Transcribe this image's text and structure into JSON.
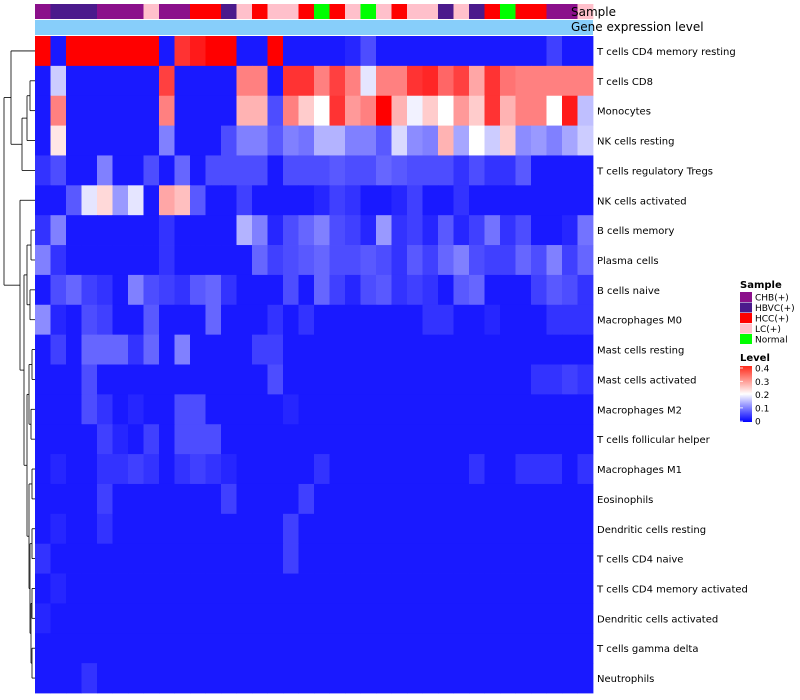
{
  "chart_data": {
    "type": "heatmap",
    "title": "",
    "annotation_tracks": [
      "Sample",
      "Gene expression level"
    ],
    "rows": [
      "T cells CD4 memory resting",
      "T cells CD8",
      "Monocytes",
      "NK cells resting",
      "T cells regulatory  Tregs",
      "NK cells activated",
      "B cells memory",
      "Plasma cells",
      "B cells naive",
      "Macrophages M0",
      "Mast cells resting",
      "Mast cells activated",
      "Macrophages M2",
      "T cells follicular helper",
      "Macrophages M1",
      "Eosinophils",
      "Dendritic cells resting",
      "T cells CD4 naive",
      "T cells CD4 memory activated",
      "Dendritic cells activated",
      "T cells gamma delta",
      "Neutrophils"
    ],
    "samples": [
      "CHB(+)",
      "HBVC(+)",
      "HBVC(+)",
      "HBVC(+)",
      "CHB(+)",
      "CHB(+)",
      "CHB(+)",
      "LC(+)",
      "CHB(+)",
      "CHB(+)",
      "HCC(+)",
      "HCC(+)",
      "HBVC(+)",
      "LC(+)",
      "HCC(+)",
      "LC(+)",
      "LC(+)",
      "HCC(+)",
      "Normal",
      "HCC(+)",
      "LC(+)",
      "Normal",
      "LC(+)",
      "HCC(+)",
      "LC(+)",
      "LC(+)",
      "HBVC(+)",
      "LC(+)",
      "HBVC(+)",
      "HCC(+)",
      "Normal",
      "HCC(+)",
      "HCC(+)",
      "CHB(+)",
      "CHB(+)",
      "LC(+)"
    ],
    "values": [
      [
        0.4,
        0.02,
        0.4,
        0.4,
        0.4,
        0.4,
        0.4,
        0.4,
        0.02,
        0.36,
        0.38,
        0.4,
        0.4,
        0.02,
        0.02,
        0.4,
        0.02,
        0.02,
        0.02,
        0.02,
        0.03,
        0.06,
        0.02,
        0.02,
        0.02,
        0.02,
        0.02,
        0.02,
        0.02,
        0.02,
        0.02,
        0.02,
        0.02,
        0.05,
        0.02,
        0.02
      ],
      [
        0.02,
        0.16,
        0.02,
        0.02,
        0.02,
        0.02,
        0.02,
        0.02,
        0.35,
        0.02,
        0.02,
        0.02,
        0.02,
        0.3,
        0.3,
        0.02,
        0.36,
        0.36,
        0.3,
        0.35,
        0.3,
        0.18,
        0.3,
        0.3,
        0.36,
        0.37,
        0.32,
        0.35,
        0.27,
        0.36,
        0.31,
        0.3,
        0.3,
        0.3,
        0.3,
        0.3
      ],
      [
        0.02,
        0.3,
        0.02,
        0.02,
        0.02,
        0.02,
        0.02,
        0.02,
        0.3,
        0.02,
        0.02,
        0.02,
        0.02,
        0.26,
        0.26,
        0.06,
        0.3,
        0.24,
        0.2,
        0.36,
        0.28,
        0.3,
        0.4,
        0.26,
        0.19,
        0.24,
        0.2,
        0.28,
        0.24,
        0.36,
        0.26,
        0.3,
        0.3,
        0.2,
        0.38,
        0.15
      ],
      [
        0.02,
        0.22,
        0.02,
        0.02,
        0.02,
        0.02,
        0.02,
        0.02,
        0.1,
        0.02,
        0.02,
        0.02,
        0.06,
        0.1,
        0.1,
        0.07,
        0.1,
        0.09,
        0.14,
        0.14,
        0.1,
        0.1,
        0.07,
        0.17,
        0.11,
        0.1,
        0.26,
        0.13,
        0.2,
        0.16,
        0.24,
        0.11,
        0.12,
        0.1,
        0.13,
        0.16
      ],
      [
        0.04,
        0.06,
        0.02,
        0.02,
        0.1,
        0.02,
        0.02,
        0.06,
        0.02,
        0.08,
        0.02,
        0.06,
        0.06,
        0.06,
        0.06,
        0.02,
        0.06,
        0.06,
        0.06,
        0.07,
        0.06,
        0.06,
        0.08,
        0.07,
        0.06,
        0.06,
        0.06,
        0.04,
        0.06,
        0.04,
        0.04,
        0.07,
        0.02,
        0.02,
        0.02,
        0.02
      ],
      [
        0.02,
        0.02,
        0.07,
        0.18,
        0.23,
        0.12,
        0.18,
        0.02,
        0.27,
        0.25,
        0.07,
        0.02,
        0.02,
        0.05,
        0.02,
        0.02,
        0.02,
        0.02,
        0.03,
        0.05,
        0.04,
        0.02,
        0.02,
        0.03,
        0.05,
        0.02,
        0.02,
        0.04,
        0.02,
        0.02,
        0.02,
        0.02,
        0.02,
        0.02,
        0.02,
        0.02
      ],
      [
        0.04,
        0.1,
        0.02,
        0.02,
        0.02,
        0.02,
        0.02,
        0.02,
        0.04,
        0.02,
        0.02,
        0.02,
        0.02,
        0.14,
        0.1,
        0.03,
        0.06,
        0.08,
        0.1,
        0.06,
        0.05,
        0.03,
        0.12,
        0.04,
        0.05,
        0.03,
        0.07,
        0.03,
        0.05,
        0.09,
        0.04,
        0.06,
        0.02,
        0.02,
        0.03,
        0.09
      ],
      [
        0.1,
        0.04,
        0.02,
        0.02,
        0.02,
        0.02,
        0.02,
        0.02,
        0.04,
        0.02,
        0.02,
        0.02,
        0.02,
        0.02,
        0.08,
        0.05,
        0.06,
        0.07,
        0.08,
        0.06,
        0.06,
        0.07,
        0.06,
        0.04,
        0.07,
        0.05,
        0.08,
        0.1,
        0.06,
        0.05,
        0.05,
        0.08,
        0.06,
        0.1,
        0.05,
        0.08
      ],
      [
        0.02,
        0.06,
        0.08,
        0.05,
        0.04,
        0.02,
        0.1,
        0.06,
        0.05,
        0.04,
        0.07,
        0.08,
        0.04,
        0.02,
        0.02,
        0.02,
        0.06,
        0.02,
        0.08,
        0.05,
        0.03,
        0.06,
        0.07,
        0.04,
        0.05,
        0.04,
        0.02,
        0.07,
        0.08,
        0.02,
        0.02,
        0.02,
        0.05,
        0.07,
        0.06,
        0.04
      ],
      [
        0.11,
        0.03,
        0.02,
        0.06,
        0.05,
        0.02,
        0.02,
        0.07,
        0.02,
        0.02,
        0.02,
        0.08,
        0.02,
        0.02,
        0.02,
        0.04,
        0.02,
        0.04,
        0.02,
        0.02,
        0.02,
        0.02,
        0.02,
        0.02,
        0.02,
        0.04,
        0.04,
        0.02,
        0.02,
        0.03,
        0.02,
        0.02,
        0.02,
        0.04,
        0.04,
        0.04
      ],
      [
        0.02,
        0.05,
        0.02,
        0.08,
        0.08,
        0.08,
        0.04,
        0.08,
        0.02,
        0.1,
        0.02,
        0.02,
        0.02,
        0.02,
        0.05,
        0.05,
        0.02,
        0.02,
        0.02,
        0.02,
        0.02,
        0.02,
        0.02,
        0.02,
        0.02,
        0.02,
        0.02,
        0.02,
        0.02,
        0.02,
        0.02,
        0.02,
        0.02,
        0.02,
        0.02,
        0.02
      ],
      [
        0.02,
        0.02,
        0.02,
        0.06,
        0.02,
        0.02,
        0.02,
        0.02,
        0.02,
        0.02,
        0.02,
        0.02,
        0.02,
        0.02,
        0.02,
        0.06,
        0.02,
        0.02,
        0.02,
        0.02,
        0.02,
        0.02,
        0.02,
        0.02,
        0.02,
        0.02,
        0.02,
        0.02,
        0.02,
        0.02,
        0.02,
        0.02,
        0.04,
        0.04,
        0.05,
        0.04
      ],
      [
        0.02,
        0.02,
        0.02,
        0.06,
        0.04,
        0.02,
        0.03,
        0.02,
        0.02,
        0.06,
        0.06,
        0.02,
        0.02,
        0.02,
        0.02,
        0.02,
        0.03,
        0.02,
        0.02,
        0.02,
        0.02,
        0.02,
        0.02,
        0.02,
        0.02,
        0.02,
        0.02,
        0.02,
        0.02,
        0.02,
        0.02,
        0.02,
        0.02,
        0.02,
        0.02,
        0.02
      ],
      [
        0.02,
        0.02,
        0.02,
        0.02,
        0.05,
        0.03,
        0.02,
        0.05,
        0.02,
        0.06,
        0.06,
        0.06,
        0.02,
        0.02,
        0.02,
        0.02,
        0.02,
        0.02,
        0.02,
        0.02,
        0.02,
        0.02,
        0.02,
        0.02,
        0.02,
        0.02,
        0.02,
        0.02,
        0.02,
        0.02,
        0.02,
        0.02,
        0.02,
        0.02,
        0.02,
        0.02
      ],
      [
        0.02,
        0.03,
        0.02,
        0.02,
        0.04,
        0.04,
        0.05,
        0.04,
        0.02,
        0.04,
        0.05,
        0.04,
        0.03,
        0.02,
        0.02,
        0.02,
        0.02,
        0.02,
        0.04,
        0.02,
        0.02,
        0.02,
        0.02,
        0.02,
        0.02,
        0.02,
        0.02,
        0.02,
        0.04,
        0.02,
        0.02,
        0.04,
        0.04,
        0.04,
        0.02,
        0.04
      ],
      [
        0.02,
        0.02,
        0.02,
        0.02,
        0.05,
        0.02,
        0.02,
        0.02,
        0.02,
        0.02,
        0.02,
        0.02,
        0.05,
        0.02,
        0.02,
        0.02,
        0.02,
        0.05,
        0.02,
        0.02,
        0.02,
        0.02,
        0.02,
        0.02,
        0.02,
        0.02,
        0.02,
        0.02,
        0.02,
        0.02,
        0.02,
        0.02,
        0.02,
        0.02,
        0.02,
        0.02
      ],
      [
        0.02,
        0.03,
        0.02,
        0.02,
        0.04,
        0.02,
        0.02,
        0.02,
        0.02,
        0.02,
        0.02,
        0.02,
        0.02,
        0.02,
        0.02,
        0.02,
        0.05,
        0.02,
        0.02,
        0.02,
        0.02,
        0.02,
        0.02,
        0.02,
        0.02,
        0.02,
        0.02,
        0.02,
        0.02,
        0.02,
        0.02,
        0.02,
        0.02,
        0.02,
        0.02,
        0.02
      ],
      [
        0.04,
        0.02,
        0.02,
        0.02,
        0.02,
        0.02,
        0.02,
        0.02,
        0.02,
        0.02,
        0.02,
        0.02,
        0.02,
        0.02,
        0.02,
        0.02,
        0.05,
        0.02,
        0.02,
        0.02,
        0.02,
        0.02,
        0.02,
        0.02,
        0.02,
        0.02,
        0.02,
        0.02,
        0.02,
        0.02,
        0.02,
        0.02,
        0.02,
        0.02,
        0.02,
        0.02
      ],
      [
        0.02,
        0.03,
        0.02,
        0.02,
        0.02,
        0.02,
        0.02,
        0.02,
        0.02,
        0.02,
        0.02,
        0.02,
        0.02,
        0.02,
        0.02,
        0.02,
        0.02,
        0.02,
        0.02,
        0.02,
        0.02,
        0.02,
        0.02,
        0.02,
        0.02,
        0.02,
        0.02,
        0.02,
        0.02,
        0.02,
        0.02,
        0.02,
        0.02,
        0.02,
        0.02,
        0.02
      ],
      [
        0.03,
        0.02,
        0.02,
        0.02,
        0.02,
        0.02,
        0.02,
        0.02,
        0.02,
        0.02,
        0.02,
        0.02,
        0.02,
        0.02,
        0.02,
        0.02,
        0.02,
        0.02,
        0.02,
        0.02,
        0.02,
        0.02,
        0.02,
        0.02,
        0.02,
        0.02,
        0.02,
        0.02,
        0.02,
        0.02,
        0.02,
        0.02,
        0.02,
        0.02,
        0.02,
        0.02
      ],
      [
        0.02,
        0.02,
        0.02,
        0.02,
        0.02,
        0.02,
        0.02,
        0.02,
        0.02,
        0.02,
        0.02,
        0.02,
        0.02,
        0.02,
        0.02,
        0.02,
        0.02,
        0.02,
        0.02,
        0.02,
        0.02,
        0.02,
        0.02,
        0.02,
        0.02,
        0.02,
        0.02,
        0.02,
        0.02,
        0.02,
        0.02,
        0.02,
        0.02,
        0.02,
        0.02,
        0.02
      ],
      [
        0.02,
        0.02,
        0.02,
        0.04,
        0.02,
        0.02,
        0.02,
        0.02,
        0.02,
        0.02,
        0.02,
        0.02,
        0.02,
        0.02,
        0.02,
        0.02,
        0.02,
        0.02,
        0.02,
        0.02,
        0.02,
        0.02,
        0.02,
        0.02,
        0.02,
        0.02,
        0.02,
        0.02,
        0.02,
        0.02,
        0.02,
        0.02,
        0.02,
        0.02,
        0.02,
        0.02
      ]
    ],
    "color_scale": {
      "min": 0,
      "mid": 0.2,
      "max": 0.4,
      "low_color": "#0000ff",
      "mid_color": "#ffffff",
      "high_color": "#ff0000"
    },
    "sample_legend": {
      "title": "Sample",
      "entries": [
        {
          "label": "CHB(+)",
          "color": "#8b108b"
        },
        {
          "label": "HBVC(+)",
          "color": "#4b1a8c"
        },
        {
          "label": "HCC(+)",
          "color": "#ff0000"
        },
        {
          "label": "LC(+)",
          "color": "#ffc0cb"
        },
        {
          "label": "Normal",
          "color": "#00ff00"
        }
      ]
    },
    "level_legend": {
      "title": "Level",
      "ticks": [
        "0.4",
        "0.3",
        "0.2",
        "0.1",
        "0"
      ]
    },
    "gene_expression_bar_color": "#87cefa"
  }
}
